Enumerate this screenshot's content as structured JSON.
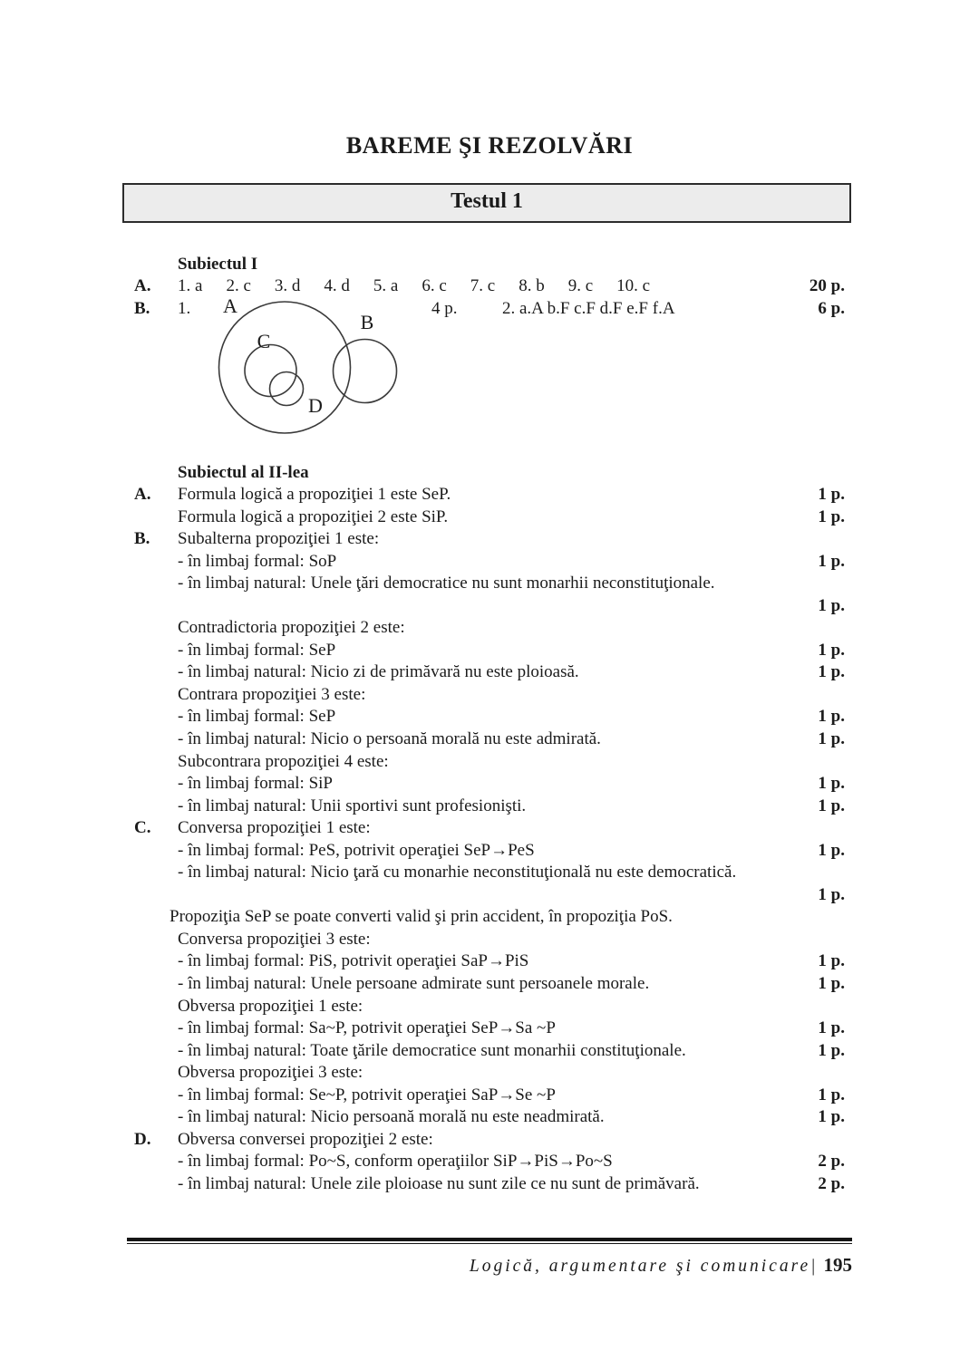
{
  "header": {
    "title": "BAREME ŞI REZOLVĂRI",
    "test_box_label": "Testul 1"
  },
  "subiect1": {
    "heading": "Subiectul I",
    "rowA": {
      "letter": "A.",
      "answers": [
        "1. a",
        "2. c",
        "3. d",
        "4. d",
        "5. a",
        "6. c",
        "7. c",
        "8. b",
        "9. c",
        "10. c"
      ],
      "points": "20 p."
    },
    "rowB": {
      "letter": "B.",
      "item1": "1.",
      "points1": "4 p.",
      "item2": "2. a.A b.F c.F d.F e.F f.A",
      "points2": "6 p."
    },
    "diagram": {
      "label_a": "A",
      "label_b": "B",
      "label_c": "C",
      "label_d": "D"
    }
  },
  "subiect2": {
    "heading": "Subiectul al II-lea",
    "lines": [
      {
        "letter": "A.",
        "text": "Formula logică a propoziţiei 1 este SeP.",
        "points": "1 p."
      },
      {
        "text": "Formula logică a propoziţiei 2 este SiP.",
        "points": "1 p."
      },
      {
        "letter": "B.",
        "text": "Subalterna propoziţiei 1 este:"
      },
      {
        "text": "- în limbaj formal: SoP",
        "points": "1 p."
      },
      {
        "text": "- în limbaj natural: Unele ţări democratice nu sunt monarhii neconstituţionale."
      },
      {
        "text": "",
        "points": "1 p."
      },
      {
        "text": "Contradictoria propoziţiei 2 este:"
      },
      {
        "text": "- în limbaj formal: SeP",
        "points": "1 p."
      },
      {
        "text": "- în limbaj natural: Nicio zi de primăvară nu este ploioasă.",
        "points": "1 p."
      },
      {
        "text": "Contrara propoziţiei 3 este:"
      },
      {
        "text": "- în limbaj formal: SeP",
        "points": "1 p."
      },
      {
        "text": "- în limbaj natural: Nicio o persoană morală nu este admirată.",
        "points": "1 p."
      },
      {
        "text": "Subcontrara propoziţiei 4 este:"
      },
      {
        "text": "- în limbaj formal: SiP",
        "points": "1 p."
      },
      {
        "text": "- în limbaj natural: Unii sportivi sunt profesionişti.",
        "points": "1 p."
      },
      {
        "letter": "C.",
        "text": "Conversa propoziţiei 1 este:"
      },
      {
        "text": "- în limbaj formal: PeS, potrivit operaţiei SeP→PeS",
        "points": "1 p."
      },
      {
        "text": "- în limbaj natural: Nicio ţară cu monarhie neconstituţională nu este democratică."
      },
      {
        "text": "",
        "points": "1 p."
      },
      {
        "text": "Propoziţia SeP se poate converti valid şi prin accident, în propoziţia PoS.",
        "outdent": true
      },
      {
        "text": "Conversa propoziţiei 3 este:"
      },
      {
        "text": "- în limbaj formal: PiS, potrivit operaţiei SaP→PiS",
        "points": "1 p."
      },
      {
        "text": "- în limbaj natural: Unele persoane admirate sunt persoanele morale.",
        "points": "1 p."
      },
      {
        "text": "Obversa propoziţiei 1 este:"
      },
      {
        "text": "- în limbaj formal: Sa~P, potrivit operaţiei SeP→Sa ~P",
        "points": "1 p."
      },
      {
        "text": "- în limbaj natural: Toate ţările democratice sunt monarhii constituţionale.",
        "points": "1 p."
      },
      {
        "text": "Obversa propoziţiei 3 este:"
      },
      {
        "text": "- în limbaj formal: Se~P, potrivit operaţiei SaP→Se ~P",
        "points": "1 p."
      },
      {
        "text": "- în limbaj natural: Nicio persoană morală nu este neadmirată.",
        "points": "1 p."
      },
      {
        "letter": "D.",
        "text": "Obversa conversei propoziţiei 2 este:"
      },
      {
        "text": "- în limbaj formal: Po~S, conform operaţiilor SiP→PiS→Po~S",
        "points": "2 p."
      },
      {
        "text": "- în limbaj natural: Unele zile ploioase nu sunt zile ce nu sunt de primăvară.",
        "points": "2 p."
      }
    ]
  },
  "footer": {
    "text": "Logică, argumentare şi comunicare|",
    "page_number": "195"
  }
}
